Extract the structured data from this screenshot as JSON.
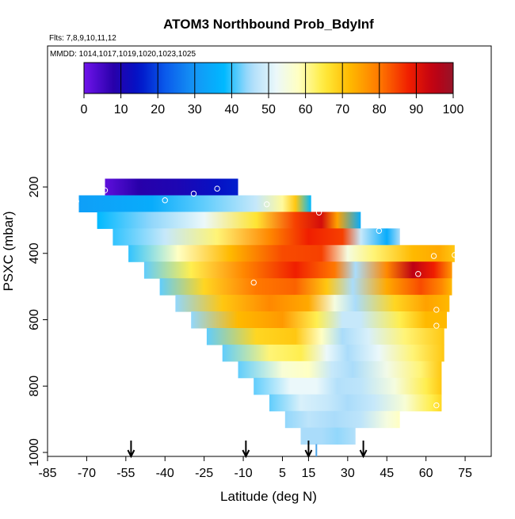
{
  "chart_data": {
    "type": "heatmap",
    "title": "ATOM3 Northbound Prob_BdyInf",
    "flights_text": "Flts: 7,8,9,10,11,12",
    "mmdd_text": "MMDD: 1014,1017,1019,1020,1023,1025",
    "xlabel": "Latitude (deg N)",
    "ylabel": "PSXC (mbar)",
    "xlim": [
      -85,
      85
    ],
    "ylim": [
      1000,
      100
    ],
    "x_ticks": [
      -85,
      -70,
      -55,
      -40,
      -25,
      -10,
      5,
      15,
      30,
      45,
      60,
      75
    ],
    "x_tick_labels": [
      "-85",
      "-70",
      "-55",
      "-40",
      "-25",
      "-10",
      "5",
      "15",
      "30",
      "45",
      "60",
      "75"
    ],
    "y_ticks": [
      200,
      400,
      600,
      800,
      1000
    ],
    "y_tick_labels": [
      "200",
      "400",
      "600",
      "800",
      "1000"
    ],
    "colorbar": {
      "range": [
        0,
        100
      ],
      "ticks": [
        0,
        10,
        20,
        30,
        40,
        50,
        60,
        70,
        80,
        90,
        100
      ],
      "tick_labels": [
        "0",
        "10",
        "20",
        "30",
        "40",
        "50",
        "60",
        "70",
        "80",
        "90",
        "100"
      ]
    },
    "rows": [
      {
        "p": 200,
        "lat_start": -63,
        "lat_end": -12,
        "values": [
          [
            -63,
            2
          ],
          [
            -50,
            8
          ],
          [
            -35,
            10
          ],
          [
            -20,
            14
          ],
          [
            -12,
            16
          ]
        ]
      },
      {
        "p": 250,
        "lat_start": -73,
        "lat_end": 16,
        "values": [
          [
            -73,
            32
          ],
          [
            -45,
            35
          ],
          [
            -25,
            42
          ],
          [
            -5,
            48
          ],
          [
            5,
            60
          ],
          [
            10,
            70
          ],
          [
            16,
            38
          ]
        ]
      },
      {
        "p": 300,
        "lat_start": -66,
        "lat_end": 35,
        "values": [
          [
            -66,
            38
          ],
          [
            -45,
            44
          ],
          [
            -25,
            52
          ],
          [
            -5,
            66
          ],
          [
            10,
            85
          ],
          [
            20,
            92
          ],
          [
            26,
            75
          ],
          [
            35,
            35
          ]
        ]
      },
      {
        "p": 350,
        "lat_start": -60,
        "lat_end": 50,
        "values": [
          [
            -60,
            40
          ],
          [
            -40,
            48
          ],
          [
            -20,
            62
          ],
          [
            0,
            78
          ],
          [
            15,
            88
          ],
          [
            28,
            85
          ],
          [
            35,
            48
          ],
          [
            45,
            35
          ],
          [
            50,
            45
          ]
        ]
      },
      {
        "p": 400,
        "lat_start": -54,
        "lat_end": 71,
        "values": [
          [
            -54,
            40
          ],
          [
            -35,
            58
          ],
          [
            -15,
            72
          ],
          [
            5,
            84
          ],
          [
            20,
            85
          ],
          [
            30,
            55
          ],
          [
            40,
            62
          ],
          [
            55,
            72
          ],
          [
            65,
            74
          ],
          [
            71,
            70
          ]
        ]
      },
      {
        "p": 450,
        "lat_start": -48,
        "lat_end": 70,
        "values": [
          [
            -48,
            42
          ],
          [
            -30,
            64
          ],
          [
            -10,
            78
          ],
          [
            10,
            88
          ],
          [
            25,
            80
          ],
          [
            33,
            45
          ],
          [
            45,
            78
          ],
          [
            55,
            95
          ],
          [
            63,
            88
          ],
          [
            70,
            76
          ]
        ]
      },
      {
        "p": 500,
        "lat_start": -42,
        "lat_end": 70,
        "values": [
          [
            -42,
            42
          ],
          [
            -25,
            68
          ],
          [
            -5,
            80
          ],
          [
            10,
            82
          ],
          [
            22,
            70
          ],
          [
            32,
            45
          ],
          [
            45,
            74
          ],
          [
            58,
            84
          ],
          [
            66,
            78
          ],
          [
            70,
            72
          ]
        ]
      },
      {
        "p": 550,
        "lat_start": -36,
        "lat_end": 69,
        "values": [
          [
            -36,
            44
          ],
          [
            -18,
            70
          ],
          [
            0,
            78
          ],
          [
            15,
            74
          ],
          [
            25,
            55
          ],
          [
            33,
            45
          ],
          [
            48,
            68
          ],
          [
            60,
            75
          ],
          [
            69,
            72
          ]
        ]
      },
      {
        "p": 600,
        "lat_start": -30,
        "lat_end": 68,
        "values": [
          [
            -30,
            44
          ],
          [
            -12,
            72
          ],
          [
            5,
            76
          ],
          [
            18,
            64
          ],
          [
            28,
            48
          ],
          [
            35,
            48
          ],
          [
            50,
            64
          ],
          [
            60,
            72
          ],
          [
            68,
            72
          ]
        ]
      },
      {
        "p": 650,
        "lat_start": -24,
        "lat_end": 67,
        "values": [
          [
            -24,
            42
          ],
          [
            -5,
            68
          ],
          [
            10,
            70
          ],
          [
            20,
            58
          ],
          [
            28,
            45
          ],
          [
            38,
            50
          ],
          [
            52,
            62
          ],
          [
            67,
            70
          ]
        ]
      },
      {
        "p": 700,
        "lat_start": -18,
        "lat_end": 67,
        "values": [
          [
            -18,
            42
          ],
          [
            0,
            62
          ],
          [
            12,
            64
          ],
          [
            22,
            52
          ],
          [
            30,
            45
          ],
          [
            42,
            52
          ],
          [
            55,
            62
          ],
          [
            67,
            70
          ]
        ]
      },
      {
        "p": 750,
        "lat_start": -12,
        "lat_end": 66,
        "values": [
          [
            -12,
            42
          ],
          [
            5,
            56
          ],
          [
            15,
            58
          ],
          [
            24,
            48
          ],
          [
            32,
            45
          ],
          [
            45,
            54
          ],
          [
            58,
            62
          ],
          [
            66,
            70
          ]
        ]
      },
      {
        "p": 800,
        "lat_start": -6,
        "lat_end": 66,
        "values": [
          [
            -6,
            42
          ],
          [
            8,
            52
          ],
          [
            18,
            52
          ],
          [
            26,
            46
          ],
          [
            35,
            47
          ],
          [
            48,
            55
          ],
          [
            60,
            64
          ],
          [
            66,
            70
          ]
        ]
      },
      {
        "p": 850,
        "lat_start": 0,
        "lat_end": 66,
        "values": [
          [
            0,
            42
          ],
          [
            12,
            50
          ],
          [
            22,
            48
          ],
          [
            30,
            45
          ],
          [
            40,
            48
          ],
          [
            52,
            56
          ],
          [
            62,
            64
          ],
          [
            66,
            68
          ]
        ]
      },
      {
        "p": 900,
        "lat_start": 6,
        "lat_end": 50,
        "values": [
          [
            6,
            44
          ],
          [
            15,
            47
          ],
          [
            25,
            45
          ],
          [
            35,
            47
          ],
          [
            45,
            55
          ],
          [
            50,
            58
          ]
        ]
      },
      {
        "p": 950,
        "lat_start": 12,
        "lat_end": 33,
        "values": [
          [
            12,
            45
          ],
          [
            20,
            45
          ],
          [
            26,
            44
          ],
          [
            33,
            46
          ]
        ]
      }
    ],
    "points": [
      {
        "lat": -63,
        "p": 210
      },
      {
        "lat": -20,
        "p": 205
      },
      {
        "lat": -74,
        "p": 243
      },
      {
        "lat": -29,
        "p": 220
      },
      {
        "lat": -40,
        "p": 240
      },
      {
        "lat": -1,
        "p": 252
      },
      {
        "lat": 19,
        "p": 277
      },
      {
        "lat": 42,
        "p": 332
      },
      {
        "lat": 63,
        "p": 408
      },
      {
        "lat": 71,
        "p": 405
      },
      {
        "lat": 57,
        "p": 462
      },
      {
        "lat": -6,
        "p": 488
      },
      {
        "lat": 64,
        "p": 570
      },
      {
        "lat": 64,
        "p": 618
      },
      {
        "lat": 64,
        "p": 858
      }
    ],
    "arrows_lat": [
      -53,
      -9,
      15,
      36
    ],
    "vertical_marker_lat": 18
  }
}
